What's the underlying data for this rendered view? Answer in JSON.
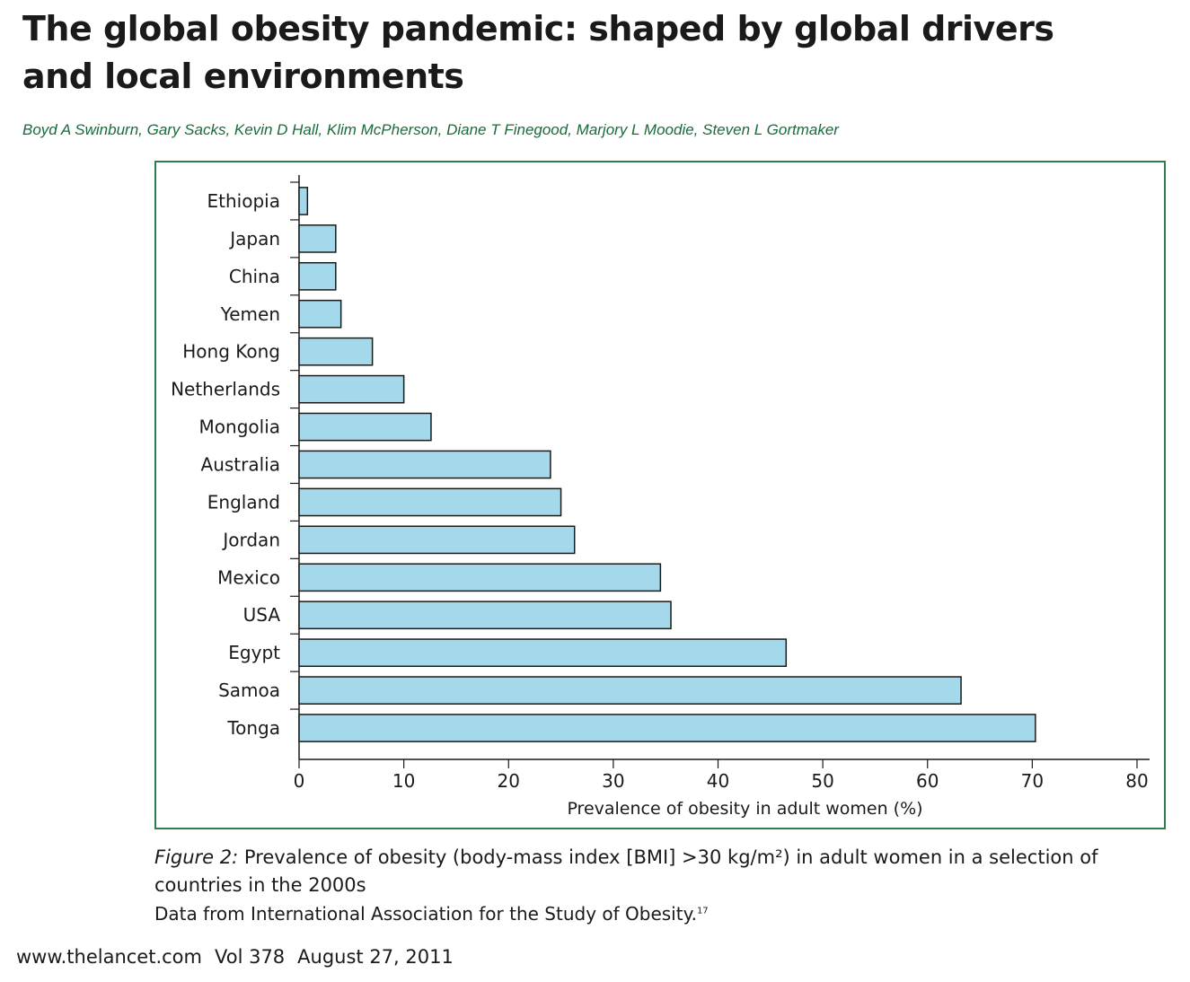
{
  "article": {
    "title": "The global obesity pandemic: shaped by global drivers and local environments",
    "authors": "Boyd A Swinburn, Gary Sacks, Kevin D Hall, Klim McPherson, Diane T Finegood, Marjory L Moodie, Steven L Gortmaker"
  },
  "caption": {
    "lead": "Figure 2:",
    "text": "Prevalence of obesity (body-mass index [BMI] >30 kg/m²) in adult women in a selection of countries in the 2000s",
    "source": "Data from International Association for the Study of Obesity.",
    "source_ref": "17"
  },
  "footer": {
    "site": "www.thelancet.com",
    "volume": "Vol 378",
    "date": "August 27, 2011"
  },
  "colors": {
    "bar_fill": "#a3d9ea",
    "bar_stroke": "#1a1a1a",
    "frame": "#2e7d4f",
    "author_text": "#1a6b3a"
  },
  "chart_data": {
    "type": "bar",
    "orientation": "horizontal",
    "categories": [
      "Ethiopia",
      "Japan",
      "China",
      "Yemen",
      "Hong Kong",
      "Netherlands",
      "Mongolia",
      "Australia",
      "England",
      "Jordan",
      "Mexico",
      "USA",
      "Egypt",
      "Samoa",
      "Tonga"
    ],
    "values": [
      0.8,
      3.5,
      3.5,
      4.0,
      7.0,
      10.0,
      12.6,
      24.0,
      25.0,
      26.3,
      34.5,
      35.5,
      46.5,
      63.2,
      70.3
    ],
    "xlabel": "Prevalence of obesity in adult women (%)",
    "xlim": [
      0,
      80
    ],
    "xticks": [
      0,
      10,
      20,
      30,
      40,
      50,
      60,
      70,
      80
    ],
    "grid": false
  }
}
